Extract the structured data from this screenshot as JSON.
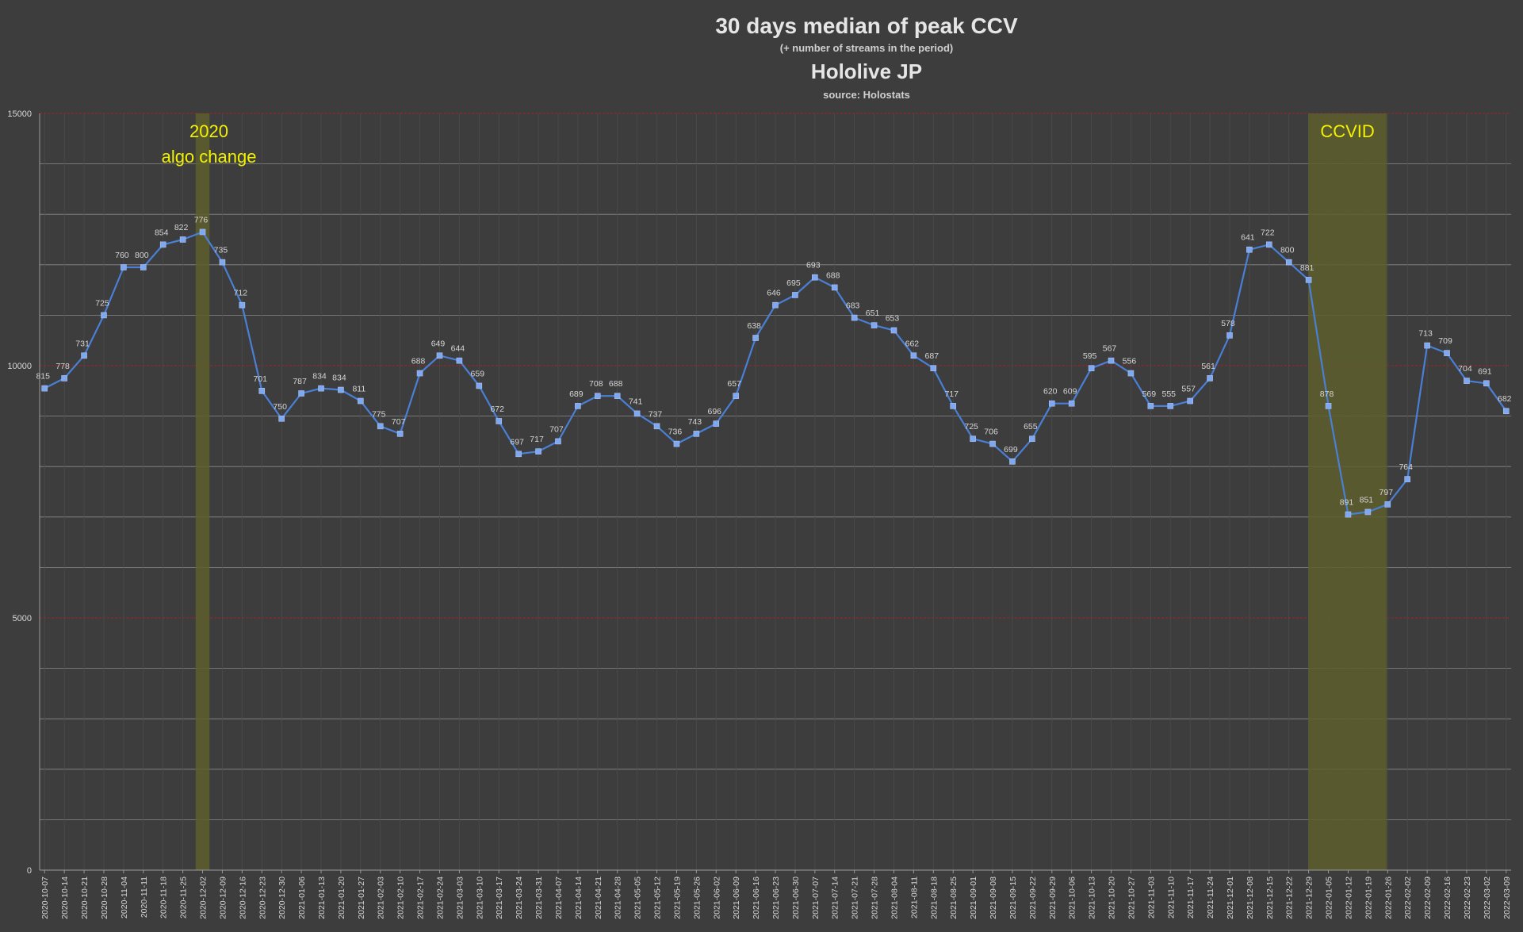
{
  "chart_data": {
    "type": "line",
    "title": "30 days median of peak CCV",
    "subtitle": "(+ number of streams in the period)",
    "subtitle2": "Hololive JP",
    "source": "source: Holostats",
    "ylim": [
      0,
      15000
    ],
    "yticks": [
      0,
      5000,
      10000,
      15000
    ],
    "grid": true,
    "colors": {
      "background": "#3d3d3d",
      "line": "#4a7fd6",
      "marker": "#7fa8f0",
      "text": "#d6d6d6",
      "title": "#e6e6e6",
      "minor_grid": "#8a8a8a",
      "major_grid": "#8b2a2a",
      "highlight_fill": "#5e5e2e",
      "highlight_text": "#f2f200"
    },
    "categories": [
      "2020-10-07",
      "2020-10-14",
      "2020-10-21",
      "2020-10-28",
      "2020-11-04",
      "2020-11-11",
      "2020-11-18",
      "2020-11-25",
      "2020-12-02",
      "2020-12-09",
      "2020-12-16",
      "2020-12-23",
      "2020-12-30",
      "2021-01-06",
      "2021-01-13",
      "2021-01-20",
      "2021-01-27",
      "2021-02-03",
      "2021-02-10",
      "2021-02-17",
      "2021-02-24",
      "2021-03-03",
      "2021-03-10",
      "2021-03-17",
      "2021-03-24",
      "2021-03-31",
      "2021-04-07",
      "2021-04-14",
      "2021-04-21",
      "2021-04-28",
      "2021-05-05",
      "2021-05-12",
      "2021-05-19",
      "2021-05-26",
      "2021-06-02",
      "2021-06-09",
      "2021-06-16",
      "2021-06-23",
      "2021-06-30",
      "2021-07-07",
      "2021-07-14",
      "2021-07-21",
      "2021-07-28",
      "2021-08-04",
      "2021-08-11",
      "2021-08-18",
      "2021-08-25",
      "2021-09-01",
      "2021-09-08",
      "2021-09-15",
      "2021-09-22",
      "2021-09-29",
      "2021-10-06",
      "2021-10-13",
      "2021-10-20",
      "2021-10-27",
      "2021-11-03",
      "2021-11-10",
      "2021-11-17",
      "2021-11-24",
      "2021-12-01",
      "2021-12-08",
      "2021-12-15",
      "2021-12-22",
      "2021-12-29",
      "2022-01-05",
      "2022-01-12",
      "2022-01-19",
      "2022-01-26",
      "2022-02-02",
      "2022-02-09",
      "2022-02-16",
      "2022-02-23",
      "2022-03-02",
      "2022-03-09"
    ],
    "values": [
      9550,
      9750,
      10200,
      11000,
      11950,
      11950,
      12400,
      12500,
      12650,
      12050,
      11200,
      9500,
      8950,
      9450,
      9550,
      9520,
      9300,
      8800,
      8650,
      9850,
      10200,
      10100,
      9600,
      8900,
      8250,
      8300,
      8500,
      9200,
      9400,
      9400,
      9050,
      8800,
      8450,
      8650,
      8850,
      9400,
      10550,
      11200,
      11400,
      11750,
      11550,
      10950,
      10800,
      10700,
      10200,
      9950,
      9200,
      8550,
      8450,
      8100,
      8550,
      9250,
      9250,
      9950,
      10100,
      9850,
      9200,
      9200,
      9300,
      9750,
      10600,
      12300,
      12400,
      12050,
      11700,
      9200,
      7050,
      7100,
      7250,
      7750,
      10400,
      10250,
      9700,
      9650,
      9100
    ],
    "data_labels": [
      "815",
      "778",
      "731",
      "725",
      "760",
      "800",
      "854",
      "822",
      "776",
      "735",
      "712",
      "701",
      "750",
      "787",
      "834",
      "834",
      "811",
      "775",
      "707",
      "688",
      "649",
      "644",
      "659",
      "672",
      "697",
      "717",
      "707",
      "689",
      "708",
      "688",
      "741",
      "737",
      "736",
      "743",
      "696",
      "657",
      "638",
      "646",
      "695",
      "693",
      "688",
      "683",
      "651",
      "653",
      "662",
      "687",
      "717",
      "725",
      "706",
      "699",
      "655",
      "620",
      "609",
      "595",
      "567",
      "556",
      "569",
      "555",
      "557",
      "561",
      "578",
      "641",
      "722",
      "800",
      "881",
      "878",
      "891",
      "851",
      "797",
      "764",
      "713",
      "709",
      "704",
      "691",
      "682"
    ],
    "annotations": [
      {
        "category": "2020-12-02",
        "span": 0.7,
        "lines": [
          "2020",
          "algo change"
        ]
      },
      {
        "from": "2021-12-29",
        "to": "2022-01-26",
        "lines": [
          "CCVID"
        ]
      }
    ]
  }
}
